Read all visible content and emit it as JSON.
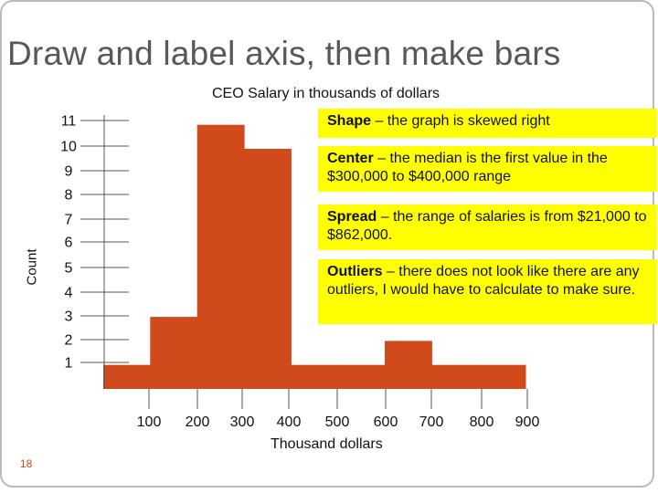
{
  "slide": {
    "title": "Draw and label axis, then make bars",
    "page_number": "18"
  },
  "notes": {
    "shape": {
      "term": "Shape",
      "text": " – the graph is skewed right"
    },
    "center": {
      "term": "Center",
      "text": " – the median is the first value in the $300,000 to $400,000 range"
    },
    "spread": {
      "term": "Spread",
      "text": " – the range of salaries is from $21,000 to $862,000."
    },
    "outliers": {
      "term": "Outliers",
      "text": " – there does not look like there are any outliers, I would have to calculate to make sure."
    }
  },
  "colors": {
    "bar": "#d04a1c",
    "note_background": "#ffff00",
    "title": "#585858",
    "axis": "#555555"
  },
  "chart_data": {
    "type": "bar",
    "title": "CEO Salary in thousands of dollars",
    "xlabel": "Thousand dollars",
    "ylabel": "Count",
    "x_ticks": [
      "100",
      "200",
      "300",
      "400",
      "500",
      "600",
      "700",
      "800",
      "900"
    ],
    "y_ticks": [
      "1",
      "2",
      "3",
      "4",
      "5",
      "6",
      "7",
      "8",
      "9",
      "10",
      "11"
    ],
    "bins": [
      {
        "from": 0,
        "to": 100,
        "count": 1
      },
      {
        "from": 100,
        "to": 200,
        "count": 3
      },
      {
        "from": 200,
        "to": 300,
        "count": 11
      },
      {
        "from": 300,
        "to": 400,
        "count": 10
      },
      {
        "from": 400,
        "to": 500,
        "count": 1
      },
      {
        "from": 500,
        "to": 600,
        "count": 1
      },
      {
        "from": 600,
        "to": 700,
        "count": 2
      },
      {
        "from": 700,
        "to": 800,
        "count": 1
      },
      {
        "from": 800,
        "to": 900,
        "count": 1
      }
    ],
    "ylim": [
      0,
      11
    ],
    "xlim": [
      0,
      900
    ],
    "grid": false
  }
}
